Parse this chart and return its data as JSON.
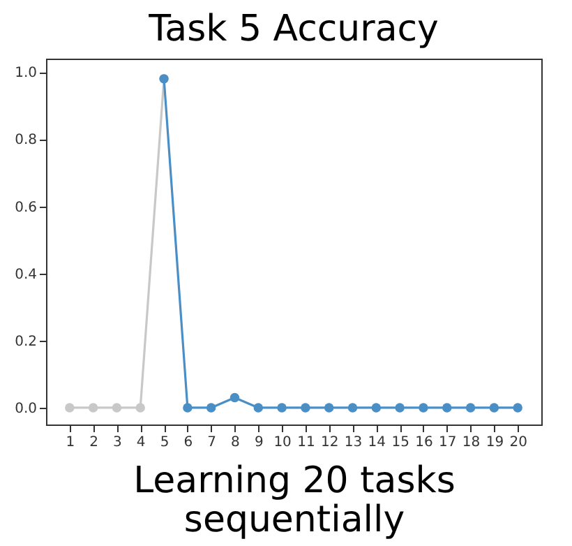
{
  "chart_data": {
    "type": "line",
    "title": "Task 5 Accuracy",
    "xlabel": "Learning 20 tasks\nsequentially",
    "series": [
      {
        "color": "#c8c8c8",
        "x": [
          1,
          2,
          3,
          4,
          5
        ],
        "values": [
          0,
          0,
          0,
          0,
          0.98
        ]
      },
      {
        "color": "#4a8ec6",
        "x": [
          5,
          6,
          7,
          8,
          9,
          10,
          11,
          12,
          13,
          14,
          15,
          16,
          17,
          18,
          19,
          20
        ],
        "values": [
          0.98,
          0,
          0,
          0.03,
          0,
          0,
          0,
          0,
          0,
          0,
          0,
          0,
          0,
          0,
          0,
          0
        ]
      }
    ],
    "xlim": [
      0,
      21
    ],
    "xticks": [
      1,
      2,
      3,
      4,
      5,
      6,
      7,
      8,
      9,
      10,
      11,
      12,
      13,
      14,
      15,
      16,
      17,
      18,
      19,
      20
    ],
    "ylim": [
      -0.05,
      1.04
    ],
    "yticks": [
      {
        "value": 0,
        "label": "0.0"
      },
      {
        "value": 0.2,
        "label": "0.2"
      },
      {
        "value": 0.4,
        "label": "0.4"
      },
      {
        "value": 0.6,
        "label": "0.6"
      },
      {
        "value": 0.8,
        "label": "0.8"
      },
      {
        "value": 1.0,
        "label": "1.0"
      }
    ],
    "grid": false,
    "marker": "circle",
    "line_style": "solid"
  }
}
